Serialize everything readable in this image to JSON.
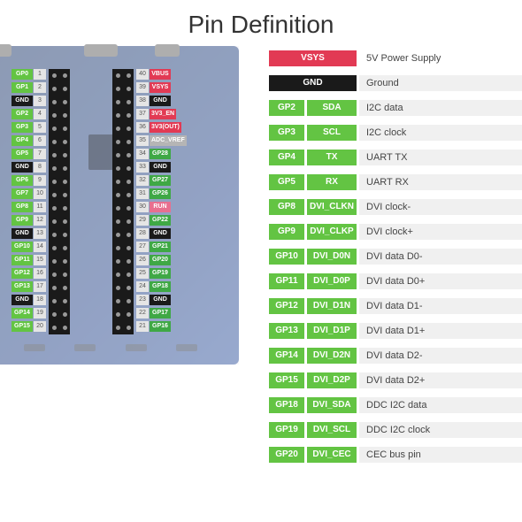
{
  "title": "Pin Definition",
  "colors": {
    "red": "#e23a54",
    "black": "#1a1a1a",
    "green": "#63c443",
    "darkgreen": "#3fa845",
    "gray": "#b5b5b5",
    "lightgray": "#dedede",
    "pink": "#e86f8f"
  },
  "left_pins": [
    {
      "label": "GP0",
      "num": "1",
      "color": "green"
    },
    {
      "label": "GP1",
      "num": "2",
      "color": "green"
    },
    {
      "label": "GND",
      "num": "3",
      "color": "black"
    },
    {
      "label": "GP2",
      "num": "4",
      "color": "green"
    },
    {
      "label": "GP3",
      "num": "5",
      "color": "green"
    },
    {
      "label": "GP4",
      "num": "6",
      "color": "green"
    },
    {
      "label": "GP5",
      "num": "7",
      "color": "green"
    },
    {
      "label": "GND",
      "num": "8",
      "color": "black"
    },
    {
      "label": "GP6",
      "num": "9",
      "color": "green"
    },
    {
      "label": "GP7",
      "num": "10",
      "color": "green"
    },
    {
      "label": "GP8",
      "num": "11",
      "color": "green"
    },
    {
      "label": "GP9",
      "num": "12",
      "color": "green"
    },
    {
      "label": "GND",
      "num": "13",
      "color": "black"
    },
    {
      "label": "GP10",
      "num": "14",
      "color": "green"
    },
    {
      "label": "GP11",
      "num": "15",
      "color": "green"
    },
    {
      "label": "GP12",
      "num": "16",
      "color": "green"
    },
    {
      "label": "GP13",
      "num": "17",
      "color": "green"
    },
    {
      "label": "GND",
      "num": "18",
      "color": "black"
    },
    {
      "label": "GP14",
      "num": "19",
      "color": "green"
    },
    {
      "label": "GP15",
      "num": "20",
      "color": "green"
    }
  ],
  "right_pins": [
    {
      "label": "VBUS",
      "num": "40",
      "color": "red"
    },
    {
      "label": "VSYS",
      "num": "39",
      "color": "red"
    },
    {
      "label": "GND",
      "num": "38",
      "color": "black"
    },
    {
      "label": "3V3_EN",
      "num": "37",
      "color": "red"
    },
    {
      "label": "3V3(OUT)",
      "num": "36",
      "color": "red"
    },
    {
      "label": "ADC_VREF",
      "num": "35",
      "color": "gray"
    },
    {
      "label": "GP28",
      "num": "34",
      "color": "darkgreen"
    },
    {
      "label": "GND",
      "num": "33",
      "color": "black"
    },
    {
      "label": "GP27",
      "num": "32",
      "color": "darkgreen"
    },
    {
      "label": "GP26",
      "num": "31",
      "color": "darkgreen"
    },
    {
      "label": "RUN",
      "num": "30",
      "color": "pink"
    },
    {
      "label": "GP22",
      "num": "29",
      "color": "darkgreen"
    },
    {
      "label": "GND",
      "num": "28",
      "color": "black"
    },
    {
      "label": "GP21",
      "num": "27",
      "color": "darkgreen"
    },
    {
      "label": "GP20",
      "num": "26",
      "color": "darkgreen"
    },
    {
      "label": "GP19",
      "num": "25",
      "color": "darkgreen"
    },
    {
      "label": "GP18",
      "num": "24",
      "color": "darkgreen"
    },
    {
      "label": "GND",
      "num": "23",
      "color": "black"
    },
    {
      "label": "GP17",
      "num": "22",
      "color": "darkgreen"
    },
    {
      "label": "GP16",
      "num": "21",
      "color": "darkgreen"
    }
  ],
  "legend": [
    {
      "b1": "VSYS",
      "b1c": "red",
      "b2": "",
      "b2c": "",
      "desc": "5V Power Supply",
      "descbg": "white"
    },
    {
      "b1": "GND",
      "b1c": "black",
      "b2": "",
      "b2c": "",
      "desc": "Ground"
    },
    {
      "b1": "GP2",
      "b1c": "green",
      "b2": "SDA",
      "b2c": "green",
      "desc": "I2C data"
    },
    {
      "b1": "GP3",
      "b1c": "green",
      "b2": "SCL",
      "b2c": "green",
      "desc": "I2C clock"
    },
    {
      "b1": "GP4",
      "b1c": "green",
      "b2": "TX",
      "b2c": "green",
      "desc": "UART TX"
    },
    {
      "b1": "GP5",
      "b1c": "green",
      "b2": "RX",
      "b2c": "green",
      "desc": "UART RX"
    },
    {
      "b1": "GP8",
      "b1c": "green",
      "b2": "DVI_CLKN",
      "b2c": "green",
      "desc": "DVI clock-"
    },
    {
      "b1": "GP9",
      "b1c": "green",
      "b2": "DVI_CLKP",
      "b2c": "green",
      "desc": "DVI clock+"
    },
    {
      "b1": "GP10",
      "b1c": "green",
      "b2": "DVI_D0N",
      "b2c": "green",
      "desc": "DVI data D0-"
    },
    {
      "b1": "GP11",
      "b1c": "green",
      "b2": "DVI_D0P",
      "b2c": "green",
      "desc": "DVI data D0+"
    },
    {
      "b1": "GP12",
      "b1c": "green",
      "b2": "DVI_D1N",
      "b2c": "green",
      "desc": "DVI data D1-"
    },
    {
      "b1": "GP13",
      "b1c": "green",
      "b2": "DVI_D1P",
      "b2c": "green",
      "desc": "DVI data D1+"
    },
    {
      "b1": "GP14",
      "b1c": "green",
      "b2": "DVI_D2N",
      "b2c": "green",
      "desc": "DVI data D2-"
    },
    {
      "b1": "GP15",
      "b1c": "green",
      "b2": "DVI_D2P",
      "b2c": "green",
      "desc": "DVI data D2+"
    },
    {
      "b1": "GP18",
      "b1c": "green",
      "b2": "DVI_SDA",
      "b2c": "green",
      "desc": "DDC I2C data"
    },
    {
      "b1": "GP19",
      "b1c": "green",
      "b2": "DVI_SCL",
      "b2c": "green",
      "desc": "DDC I2C clock"
    },
    {
      "b1": "GP20",
      "b1c": "green",
      "b2": "DVI_CEC",
      "b2c": "green",
      "desc": "CEC bus pin"
    }
  ]
}
